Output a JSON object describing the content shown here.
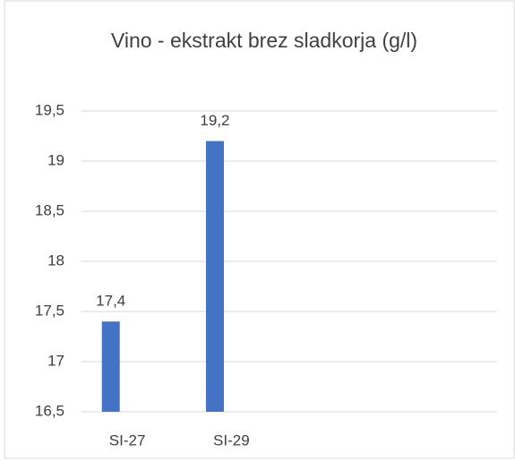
{
  "chart_data": {
    "type": "bar",
    "title": "Vino - ekstrakt brez sladkorja (g/l)",
    "categories": [
      "SI-27",
      "SI-29",
      null,
      null
    ],
    "values": [
      17.4,
      19.2,
      null,
      null
    ],
    "value_labels": [
      "17,4",
      "19,2",
      null,
      null
    ],
    "color": "#4472c4",
    "ylim": [
      16.5,
      19.5
    ],
    "yticks": [
      {
        "value": 16.5,
        "label": "16,5"
      },
      17,
      {
        "value": 17.5,
        "label": "17,5"
      },
      18,
      {
        "value": 18.5,
        "label": "18,5"
      },
      19,
      {
        "value": 19.5,
        "label": "19,5"
      }
    ],
    "grid": true
  }
}
